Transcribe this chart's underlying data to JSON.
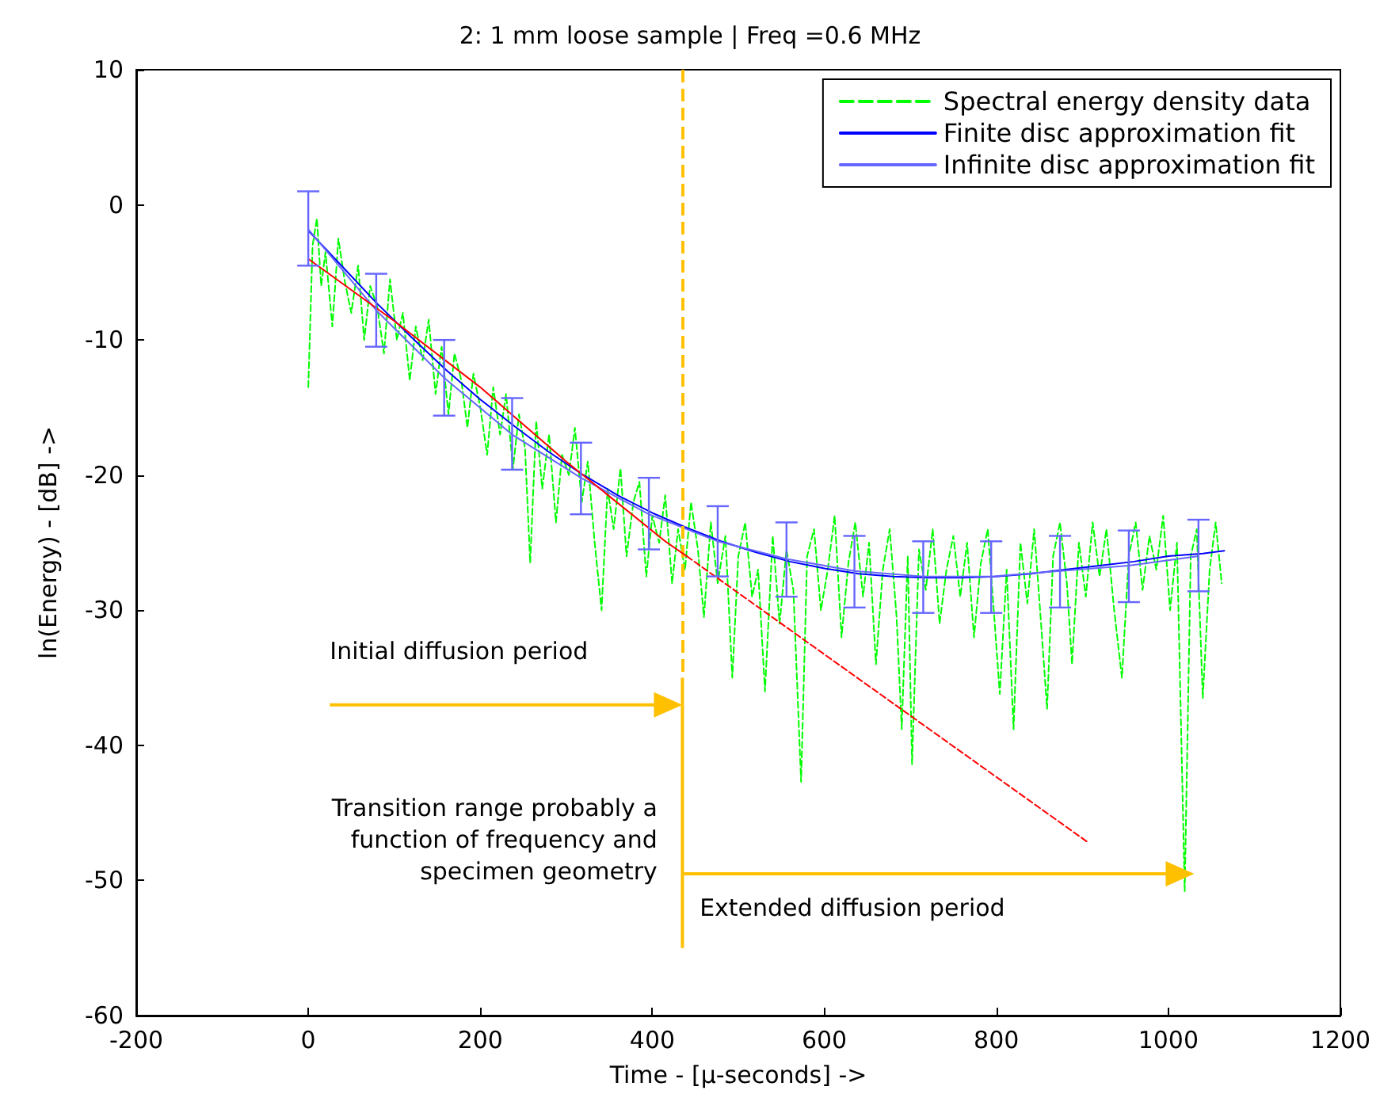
{
  "chart_data": {
    "type": "line",
    "title": "2: 1 mm loose sample | Freq =0.6 MHz",
    "xlabel": "Time - [μ-seconds] ->",
    "ylabel": "ln(Energy) - [dB] ->",
    "xlim": [
      -200,
      1200
    ],
    "xticks": [
      -200,
      0,
      200,
      400,
      600,
      800,
      1000,
      1200
    ],
    "ylim": [
      -60,
      10
    ],
    "yticks": [
      -60,
      -50,
      -40,
      -30,
      -20,
      -10,
      0,
      10
    ],
    "grid": false,
    "legend": "top right",
    "marker": "none",
    "annotations": [
      "Initial diffusion period",
      "Transition range probably a\nfunction of frequency and\nspecimen geometry",
      "Extended diffusion period"
    ],
    "ref_lines": [
      {
        "axis": "x",
        "value": 435,
        "color": "#ffc000",
        "line_style": "dashed"
      }
    ],
    "series": [
      {
        "name": "Spectral energy density data",
        "color": "#00ff00",
        "line_style": "dashed",
        "x": [
          0,
          5,
          10,
          15,
          20,
          28,
          35,
          42,
          50,
          58,
          65,
          72,
          80,
          88,
          95,
          103,
          110,
          118,
          125,
          133,
          140,
          148,
          155,
          163,
          170,
          178,
          185,
          192,
          200,
          208,
          215,
          223,
          230,
          238,
          245,
          252,
          258,
          265,
          272,
          280,
          288,
          295,
          303,
          310,
          318,
          325,
          333,
          341,
          348,
          355,
          363,
          370,
          378,
          385,
          393,
          400,
          408,
          415,
          423,
          430,
          438,
          445,
          453,
          460,
          468,
          476,
          485,
          493,
          500,
          508,
          516,
          523,
          531,
          540,
          548,
          556,
          564,
          573,
          580,
          588,
          596,
          604,
          612,
          620,
          628,
          636,
          645,
          652,
          660,
          668,
          676,
          684,
          690,
          697,
          702,
          710,
          718,
          726,
          734,
          742,
          750,
          758,
          766,
          774,
          782,
          790,
          797,
          804,
          812,
          820,
          828,
          836,
          844,
          852,
          859,
          866,
          874,
          882,
          888,
          896,
          904,
          912,
          920,
          928,
          937,
          946,
          954,
          962,
          970,
          978,
          986,
          994,
          1002,
          1010,
          1019,
          1026,
          1033,
          1040,
          1048,
          1055,
          1062
        ],
        "values": [
          -13.5,
          -3,
          -1,
          -6,
          -3.5,
          -9,
          -2.5,
          -5.5,
          -8,
          -4.5,
          -10,
          -6,
          -7.5,
          -11,
          -5.5,
          -10,
          -8,
          -13,
          -9,
          -11.5,
          -8.5,
          -14,
          -10.5,
          -15.5,
          -11,
          -13,
          -16.5,
          -12.5,
          -15,
          -18.5,
          -13.5,
          -17,
          -14,
          -19.5,
          -15.5,
          -18,
          -26.5,
          -16,
          -21,
          -17,
          -23.5,
          -18.5,
          -20,
          -16.5,
          -22,
          -19,
          -25,
          -30,
          -21,
          -24,
          -19.5,
          -26,
          -22,
          -20.5,
          -27.5,
          -23,
          -25,
          -21.5,
          -28,
          -24,
          -27,
          -22,
          -25.5,
          -30.5,
          -23.5,
          -28,
          -24.5,
          -35,
          -26,
          -23.5,
          -29,
          -27,
          -36,
          -24.5,
          -31,
          -25.5,
          -28.5,
          -42.7,
          -26,
          -24,
          -30,
          -27,
          -23,
          -32,
          -26.5,
          -23.5,
          -29,
          -25,
          -34,
          -27,
          -24,
          -30.5,
          -38.8,
          -26,
          -41.4,
          -25.5,
          -28.5,
          -24,
          -31,
          -27,
          -24.5,
          -29,
          -25,
          -32,
          -26.5,
          -24,
          -30,
          -36.2,
          -27,
          -38.8,
          -25,
          -29.5,
          -24,
          -31,
          -37.3,
          -26,
          -23.5,
          -28,
          -34,
          -25,
          -29,
          -23.5,
          -27.5,
          -24,
          -30,
          -35,
          -26,
          -23.5,
          -28.5,
          -24.5,
          -27,
          -23,
          -30,
          -25,
          -50.8,
          -26,
          -24,
          -36.5,
          -27,
          -23.5,
          -28
        ]
      },
      {
        "name": "Finite disc approximation fit",
        "color": "#0000ff",
        "x": [
          0,
          40,
          80,
          120,
          160,
          200,
          240,
          280,
          320,
          360,
          400,
          440,
          480,
          520,
          560,
          600,
          640,
          680,
          720,
          760,
          800,
          840,
          880,
          920,
          960,
          1000,
          1040,
          1065
        ],
        "values": [
          -1.9,
          -4.6,
          -7.3,
          -9.8,
          -12.2,
          -14.4,
          -16.4,
          -18.3,
          -20,
          -21.5,
          -22.8,
          -23.9,
          -24.9,
          -25.7,
          -26.4,
          -26.9,
          -27.3,
          -27.5,
          -27.6,
          -27.6,
          -27.5,
          -27.3,
          -27,
          -26.7,
          -26.4,
          -26,
          -25.8,
          -25.6
        ]
      },
      {
        "name": "Infinite disc approximation fit",
        "color": "#6666ff",
        "x": [
          0,
          79,
          158,
          237,
          317,
          396,
          476,
          556,
          635,
          715,
          794,
          874,
          954,
          1035
        ],
        "values": [
          -1.8,
          -7.8,
          -12.8,
          -17,
          -20.2,
          -22.9,
          -24.9,
          -26.2,
          -27.1,
          -27.5,
          -27.5,
          -27.1,
          -26.7,
          -26
        ],
        "errors": [
          [
            -4.5,
            1.0
          ],
          [
            -10.5,
            -5.1
          ],
          [
            -15.6,
            -10.0
          ],
          [
            -19.6,
            -14.3
          ],
          [
            -22.9,
            -17.6
          ],
          [
            -25.5,
            -20.2
          ],
          [
            -27.5,
            -22.3
          ],
          [
            -29.0,
            -23.5
          ],
          [
            -29.8,
            -24.5
          ],
          [
            -30.2,
            -24.9
          ],
          [
            -30.2,
            -24.9
          ],
          [
            -29.8,
            -24.5
          ],
          [
            -29.4,
            -24.1
          ],
          [
            -28.6,
            -23.3
          ]
        ]
      },
      {
        "color": "#ff0000",
        "line_style": "solid",
        "x": [
          0,
          100,
          200,
          300,
          415,
          440
        ],
        "values": [
          -4,
          -8.6,
          -13.5,
          -19,
          -24.9,
          -26
        ]
      },
      {
        "color": "#ff0000",
        "line_style": "dashed",
        "x": [
          440,
          907
        ],
        "values": [
          -26,
          -47.2
        ]
      }
    ]
  }
}
